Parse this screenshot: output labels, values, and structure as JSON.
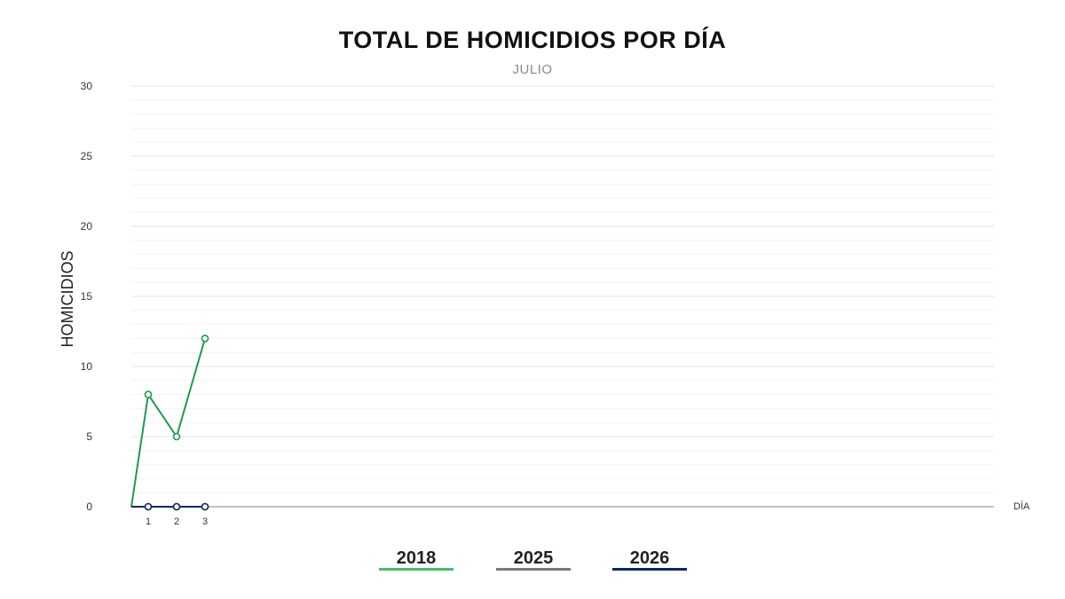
{
  "chart_data": {
    "type": "line",
    "title": "TOTAL DE HOMICIDIOS POR DÍA",
    "subtitle": "JULIO",
    "xlabel": "DÍA",
    "ylabel": "HOMICIDIOS",
    "ylim": [
      0,
      30
    ],
    "y_ticks": [
      0,
      5,
      10,
      15,
      20,
      25,
      30
    ],
    "x_ticks": [
      1,
      2,
      3
    ],
    "x_range": [
      0.4,
      31
    ],
    "grid": true,
    "legend_position": "bottom",
    "series": [
      {
        "name": "2018",
        "color": "#1f9a4e",
        "legend_color": "#3fbf6a",
        "x": [
          0.4,
          1,
          2,
          3
        ],
        "values": [
          0,
          8,
          5,
          12
        ]
      },
      {
        "name": "2025",
        "color": "#7a7a7a",
        "legend_color": "#7a7a7a",
        "x": [
          0.4,
          1,
          2,
          3
        ],
        "values": [
          0,
          0,
          0,
          0
        ]
      },
      {
        "name": "2026",
        "color": "#0b2a5c",
        "legend_color": "#0b2a5c",
        "x": [
          0.4,
          1,
          2,
          3
        ],
        "values": [
          0,
          0,
          0,
          0
        ]
      }
    ]
  }
}
